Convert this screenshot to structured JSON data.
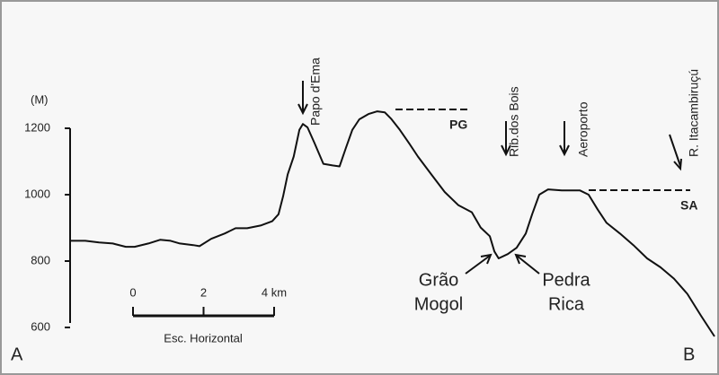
{
  "chart_data": {
    "type": "line",
    "y_unit": "(M)",
    "x": [
      0,
      0.43,
      0.82,
      1.21,
      1.58,
      1.83,
      2.22,
      2.55,
      2.85,
      3.11,
      3.49,
      3.67,
      4.0,
      4.38,
      4.69,
      5.02,
      5.4,
      5.73,
      5.91,
      6.04,
      6.17,
      6.34,
      6.5,
      6.6,
      6.73,
      6.93,
      7.18,
      7.44,
      7.64,
      7.82,
      8.0,
      8.2,
      8.46,
      8.71,
      8.92,
      9.1,
      9.35,
      9.61,
      9.86,
      10.24,
      10.62,
      11.01,
      11.39,
      11.64,
      11.9,
      12.03,
      12.15,
      12.41,
      12.66,
      12.92,
      13.1,
      13.3,
      13.55,
      13.94,
      14.45,
      14.7,
      14.96,
      15.21,
      15.59,
      15.97,
      16.36,
      16.74,
      17.12,
      17.5,
      17.89,
      18.27
    ],
    "values": [
      861,
      861,
      856,
      853,
      843,
      843,
      853,
      864,
      861,
      853,
      848,
      845,
      867,
      883,
      899,
      899,
      907,
      920,
      941,
      995,
      1061,
      1115,
      1195,
      1213,
      1203,
      1155,
      1093,
      1088,
      1085,
      1141,
      1195,
      1227,
      1243,
      1251,
      1248,
      1229,
      1195,
      1155,
      1115,
      1061,
      1008,
      968,
      947,
      901,
      875,
      829,
      808,
      821,
      840,
      883,
      941,
      1000,
      1016,
      1013,
      1013,
      1000,
      955,
      915,
      883,
      848,
      808,
      781,
      747,
      701,
      635,
      573
    ],
    "color": "#111111",
    "xlim": [
      0,
      18.27
    ],
    "ylim": [
      600,
      1200
    ],
    "yticks": [
      600,
      800,
      1000,
      1200
    ],
    "scale_bar": {
      "ticks": [
        0,
        2,
        {
          "value": 4,
          "label": "4 km"
        }
      ],
      "label": "Esc. Horizontal"
    },
    "annotations": {
      "papo": "Papo d'Ema",
      "rib": "Rib.dos Bois",
      "aero": "Aeroporto",
      "itac": "R. Itacambiruçú",
      "pg": "PG",
      "sa": "SA",
      "grao": [
        "Grão",
        "Mogol"
      ],
      "pedra": [
        "Pedra",
        "Rica"
      ],
      "a": "A",
      "b": "B"
    }
  }
}
